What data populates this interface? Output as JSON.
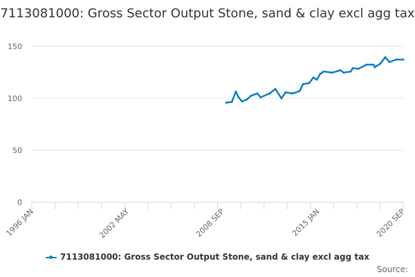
{
  "chart_data": {
    "type": "line",
    "title": "7113081000: Gross Sector Output Stone, sand & clay excl agg tax",
    "xlabel": "",
    "ylabel": "",
    "xlim": [
      1996.0,
      2020.667
    ],
    "ylim": [
      0,
      150
    ],
    "yticks": [
      0,
      50,
      100,
      150
    ],
    "xtick_labels": [
      {
        "label": "1996 JAN",
        "x": 1996.0
      },
      {
        "label": "2002 MAY",
        "x": 2002.333
      },
      {
        "label": "2008 SEP",
        "x": 2008.667
      },
      {
        "label": "2015 JAN",
        "x": 2015.0
      },
      {
        "label": "2020 SEP",
        "x": 2020.667
      }
    ],
    "minor_tick_step_years": 1.5417,
    "grid": "horizontal",
    "legend_position": "bottom",
    "color": "#0a7ec2",
    "series": [
      {
        "name": "7113081000: Gross Sector Output Stone, sand & clay excl agg tax",
        "x": [
          2008.91,
          2009.28,
          2009.55,
          2009.73,
          2009.96,
          2010.29,
          2010.56,
          2010.97,
          2011.2,
          2011.8,
          2012.17,
          2012.58,
          2012.86,
          2013.32,
          2013.78,
          2014.01,
          2014.42,
          2014.7,
          2014.93,
          2015.15,
          2015.38,
          2015.94,
          2016.49,
          2016.72,
          2017.18,
          2017.31,
          2017.68,
          2018.23,
          2018.69,
          2018.78,
          2019.15,
          2019.47,
          2019.75,
          2020.21,
          2020.67
        ],
        "y": [
          95.8,
          96.5,
          106.5,
          101,
          97,
          99,
          102.5,
          104.7,
          101,
          104.7,
          109,
          100,
          105.8,
          104.7,
          107,
          113.6,
          114.7,
          120,
          118,
          123.5,
          125.8,
          124.7,
          127,
          124.7,
          125.8,
          129,
          128.4,
          132.4,
          132.4,
          130,
          133.5,
          139.5,
          135,
          137.3,
          137.3
        ]
      }
    ],
    "source_label": "Source:"
  }
}
